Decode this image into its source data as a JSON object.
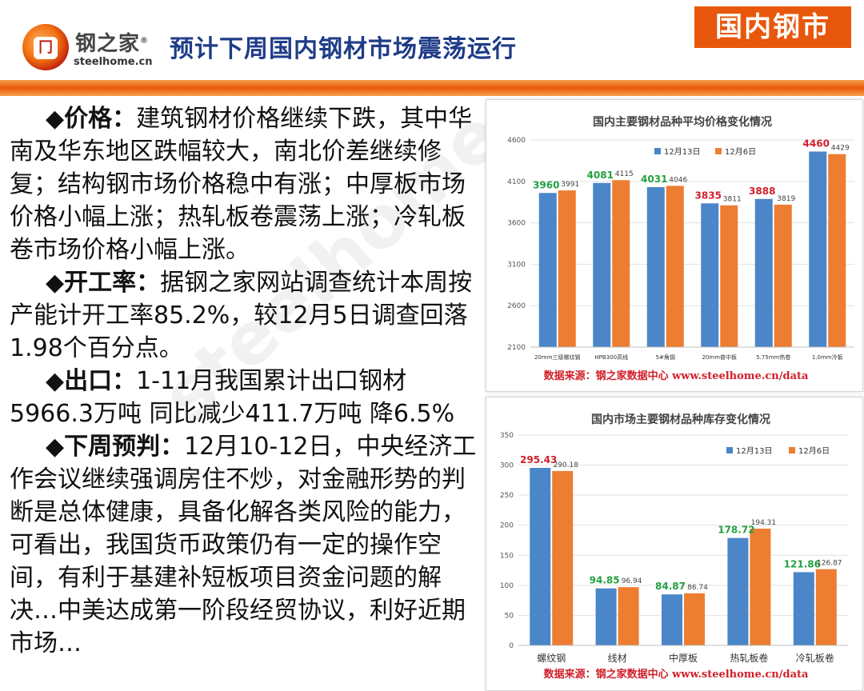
{
  "header": {
    "logo_name": "钢之家",
    "logo_mark": "®",
    "logo_domain": "steelhome.cn",
    "title": "预计下周国内钢材市场震荡运行",
    "tag": "国内钢市"
  },
  "colors": {
    "series_a": "#4a86c8",
    "series_b": "#ed7d31",
    "label_green": "#22a040",
    "label_red": "#d0202a",
    "accent": "#e8580c"
  },
  "body": {
    "p1_bullet": "◆",
    "p1_key": "价格：",
    "p1_text": "建筑钢材价格继续下跌，其中华南及华东地区跌幅较大，南北价差继续修复；结构钢市场价格稳中有涨；中厚板市场价格小幅上涨；热轧板卷震荡上涨；冷轧板卷市场价格小幅上涨。",
    "p2_bullet": "◆",
    "p2_key": "开工率：",
    "p2_text": "据钢之家网站调查统计本周按产能计开工率85.2%，较12月5日调查回落1.98个百分点。",
    "p3_bullet": "◆",
    "p3_key": "出口：",
    "p3_text": "1-11月我国累计出口钢材5966.3万吨 同比减少411.7万吨 降6.5%",
    "p4_bullet": "◆",
    "p4_key": "下周预判：",
    "p4_text": "12月10-12日，中央经济工作会议继续强调房住不炒，对金融形势的判断是总体健康，具备化解各类风险的能力，可看出，我国货币政策仍有一定的操作空间，有利于基建补短板项目资金问题的解决…中美达成第一阶段经贸协议，利好近期市场…"
  },
  "watermark": "steelhome",
  "chart_data": [
    {
      "type": "bar",
      "title": "国内主要钢材品种平均价格变化情况",
      "categories": [
        "20mm三级螺纹钢",
        "HPB300高线",
        "5#角钢",
        "20mm普中板",
        "5.75mm热卷",
        "1.0mm冷板"
      ],
      "series": [
        {
          "name": "12月13日",
          "values": [
            3960,
            4081,
            4031,
            3835,
            3888,
            4460
          ]
        },
        {
          "name": "12月6日",
          "values": [
            3991,
            4115,
            4046,
            3811,
            3819,
            4429
          ]
        }
      ],
      "label_colors_a": [
        "green",
        "green",
        "green",
        "red",
        "red",
        "red"
      ],
      "ylim": [
        2100,
        4600
      ],
      "yticks": [
        2100,
        2600,
        3100,
        3600,
        4100,
        4600
      ],
      "legend": "top",
      "source": "数据来源：钢之家数据中心 www.steelhome.cn/data"
    },
    {
      "type": "bar",
      "title": "国内市场主要钢材品种库存变化情况",
      "categories": [
        "螺纹钢",
        "线材",
        "中厚板",
        "热轧板卷",
        "冷轧板卷"
      ],
      "series": [
        {
          "name": "12月13日",
          "values": [
            295.43,
            94.85,
            84.87,
            178.72,
            121.86
          ]
        },
        {
          "name": "12月6日",
          "values": [
            290.18,
            96.94,
            86.74,
            194.31,
            126.87
          ]
        }
      ],
      "label_colors_a": [
        "red",
        "green",
        "green",
        "green",
        "green"
      ],
      "ylim": [
        0,
        350
      ],
      "yticks": [
        0,
        50,
        100,
        150,
        200,
        250,
        300,
        350
      ],
      "legend": "top-right",
      "source": "数据来源：钢之家数据中心 www.steelhome.cn/data"
    }
  ]
}
